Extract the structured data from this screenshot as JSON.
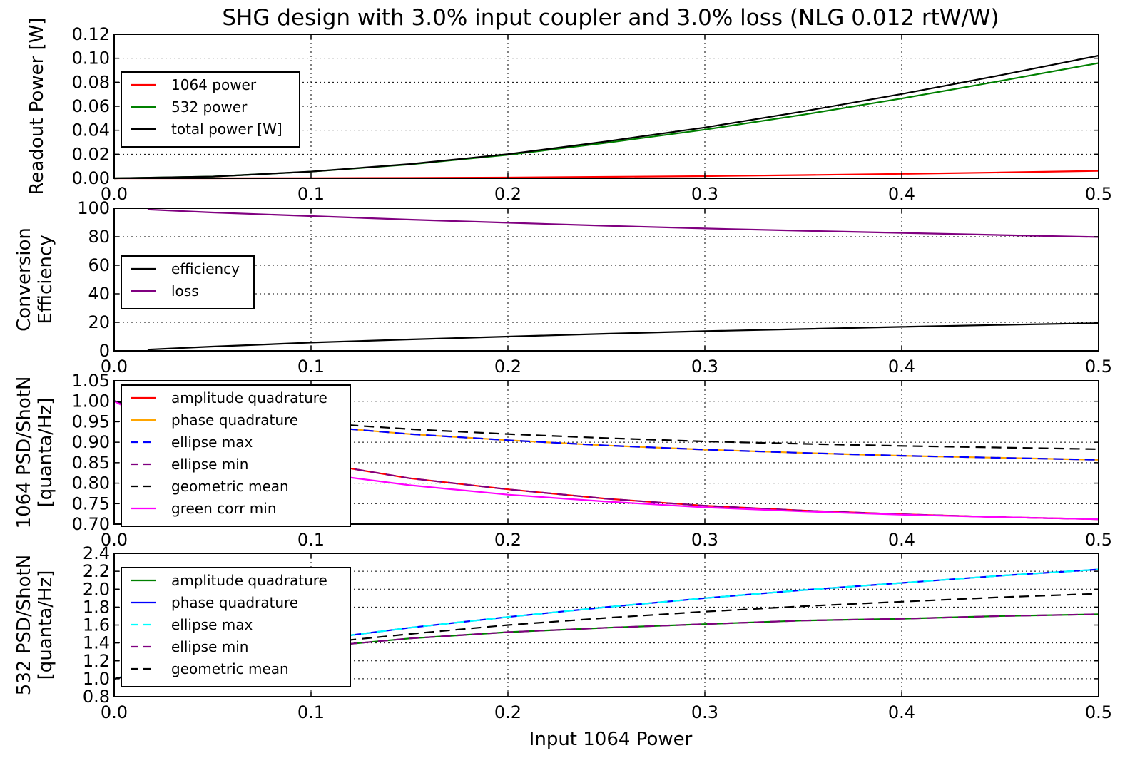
{
  "title": "SHG design with 3.0% input coupler and 3.0% loss (NLG 0.012 rtW/W)",
  "xlabel": "Input 1064 Power",
  "chart_data": [
    {
      "type": "line",
      "ylabel": [
        "Readout Power [W]"
      ],
      "xlim": [
        0.0,
        0.5
      ],
      "ylim": [
        0.0,
        0.12
      ],
      "xticks": [
        "0.0",
        "0.1",
        "0.2",
        "0.3",
        "0.4",
        "0.5"
      ],
      "yticks": [
        "0.00",
        "0.02",
        "0.04",
        "0.06",
        "0.08",
        "0.10",
        "0.12"
      ],
      "grid": true,
      "legend_position": "center-left",
      "x": [
        0.0,
        0.05,
        0.1,
        0.15,
        0.2,
        0.25,
        0.3,
        0.35,
        0.4,
        0.45,
        0.5
      ],
      "series": [
        {
          "name": "1064 power",
          "color": "#ff0000",
          "dash": "solid",
          "values": [
            0.0,
            0.0,
            0.0001,
            0.0003,
            0.0006,
            0.0012,
            0.0018,
            0.0027,
            0.0037,
            0.0048,
            0.0062
          ]
        },
        {
          "name": "532 power",
          "color": "#008000",
          "dash": "solid",
          "values": [
            0.0,
            0.0014,
            0.0055,
            0.0115,
            0.0195,
            0.0295,
            0.0405,
            0.053,
            0.0665,
            0.081,
            0.096
          ]
        },
        {
          "name": "total power [W]",
          "color": "#000000",
          "dash": "solid",
          "values": [
            0.0,
            0.0014,
            0.0056,
            0.0118,
            0.0201,
            0.0307,
            0.0423,
            0.0557,
            0.0702,
            0.0858,
            0.1022
          ]
        }
      ]
    },
    {
      "type": "line",
      "ylabel": [
        "Conversion",
        "Efficiency"
      ],
      "xlim": [
        0.0,
        0.5
      ],
      "ylim": [
        0,
        100
      ],
      "xticks": [
        "0.0",
        "0.1",
        "0.2",
        "0.3",
        "0.4",
        "0.5"
      ],
      "yticks": [
        "0",
        "20",
        "40",
        "60",
        "80",
        "100"
      ],
      "grid": true,
      "legend_position": "center-left",
      "x": [
        0.017,
        0.05,
        0.1,
        0.15,
        0.2,
        0.25,
        0.3,
        0.35,
        0.4,
        0.45,
        0.5
      ],
      "series": [
        {
          "name": "efficiency",
          "color": "#000000",
          "dash": "solid",
          "values": [
            0.9,
            3.0,
            5.8,
            8.0,
            10.0,
            12.0,
            13.8,
            15.3,
            16.8,
            18.2,
            19.4
          ]
        },
        {
          "name": "loss",
          "color": "#800080",
          "dash": "solid",
          "values": [
            99.1,
            97.0,
            94.5,
            92.0,
            89.8,
            87.7,
            85.8,
            84.2,
            82.7,
            81.2,
            79.8
          ]
        }
      ]
    },
    {
      "type": "line",
      "ylabel": [
        "1064 PSD/ShotN",
        "[quanta/Hz]"
      ],
      "xlim": [
        0.0,
        0.5
      ],
      "ylim": [
        0.7,
        1.05
      ],
      "xticks": [
        "0.0",
        "0.1",
        "0.2",
        "0.3",
        "0.4",
        "0.5"
      ],
      "yticks": [
        "0.70",
        "0.75",
        "0.80",
        "0.85",
        "0.90",
        "0.95",
        "1.00",
        "1.05"
      ],
      "grid": true,
      "legend_position": "left",
      "x": [
        0.0,
        0.05,
        0.1,
        0.15,
        0.2,
        0.25,
        0.3,
        0.35,
        0.4,
        0.45,
        0.5
      ],
      "series": [
        {
          "name": "amplitude quadrature",
          "color": "#ff0000",
          "dash": "solid",
          "values": [
            1.0,
            0.905,
            0.852,
            0.812,
            0.785,
            0.762,
            0.745,
            0.733,
            0.724,
            0.717,
            0.712
          ]
        },
        {
          "name": "phase quadrature",
          "color": "#ffa500",
          "dash": "solid",
          "values": [
            1.0,
            0.968,
            0.94,
            0.92,
            0.905,
            0.892,
            0.882,
            0.874,
            0.867,
            0.862,
            0.857
          ]
        },
        {
          "name": "ellipse max",
          "color": "#0000ff",
          "dash": "dashed",
          "values": [
            1.0,
            0.968,
            0.94,
            0.92,
            0.905,
            0.892,
            0.882,
            0.874,
            0.867,
            0.862,
            0.857
          ]
        },
        {
          "name": "ellipse min",
          "color": "#800080",
          "dash": "dashed",
          "values": [
            1.0,
            0.905,
            0.852,
            0.812,
            0.785,
            0.762,
            0.745,
            0.733,
            0.724,
            0.717,
            0.712
          ]
        },
        {
          "name": "geometric mean",
          "color": "#000000",
          "dash": "dashed",
          "values": [
            1.0,
            0.97,
            0.948,
            0.932,
            0.92,
            0.91,
            0.902,
            0.896,
            0.891,
            0.887,
            0.883
          ]
        },
        {
          "name": "green corr min",
          "color": "#ff00ff",
          "dash": "solid",
          "values": [
            1.0,
            0.875,
            0.826,
            0.795,
            0.772,
            0.755,
            0.741,
            0.731,
            0.723,
            0.717,
            0.712
          ]
        }
      ]
    },
    {
      "type": "line",
      "ylabel": [
        "532  PSD/ShotN",
        "[quanta/Hz]"
      ],
      "xlim": [
        0.0,
        0.5
      ],
      "ylim": [
        0.8,
        2.4
      ],
      "xticks": [
        "0.0",
        "0.1",
        "0.2",
        "0.3",
        "0.4",
        "0.5"
      ],
      "yticks": [
        "0.8",
        "1.0",
        "1.2",
        "1.4",
        "1.6",
        "1.8",
        "2.0",
        "2.2",
        "2.4"
      ],
      "grid": true,
      "legend_position": "left",
      "x": [
        0.0,
        0.05,
        0.1,
        0.15,
        0.2,
        0.25,
        0.3,
        0.35,
        0.4,
        0.45,
        0.5
      ],
      "series": [
        {
          "name": "amplitude quadrature",
          "color": "#008000",
          "dash": "solid",
          "values": [
            1.0,
            1.22,
            1.35,
            1.45,
            1.52,
            1.57,
            1.61,
            1.65,
            1.67,
            1.7,
            1.72
          ]
        },
        {
          "name": "phase quadrature",
          "color": "#0000ff",
          "dash": "solid",
          "values": [
            1.0,
            1.26,
            1.43,
            1.57,
            1.69,
            1.8,
            1.9,
            1.99,
            2.07,
            2.15,
            2.22
          ]
        },
        {
          "name": "ellipse max",
          "color": "#00ffff",
          "dash": "dashed",
          "values": [
            1.0,
            1.26,
            1.43,
            1.57,
            1.69,
            1.8,
            1.9,
            1.99,
            2.07,
            2.15,
            2.22
          ]
        },
        {
          "name": "ellipse min",
          "color": "#800080",
          "dash": "dashed",
          "values": [
            1.0,
            1.22,
            1.35,
            1.45,
            1.52,
            1.57,
            1.61,
            1.65,
            1.67,
            1.7,
            1.72
          ]
        },
        {
          "name": "geometric mean",
          "color": "#000000",
          "dash": "dashed",
          "values": [
            1.0,
            1.24,
            1.39,
            1.5,
            1.6,
            1.68,
            1.75,
            1.81,
            1.86,
            1.91,
            1.95
          ]
        }
      ]
    }
  ]
}
